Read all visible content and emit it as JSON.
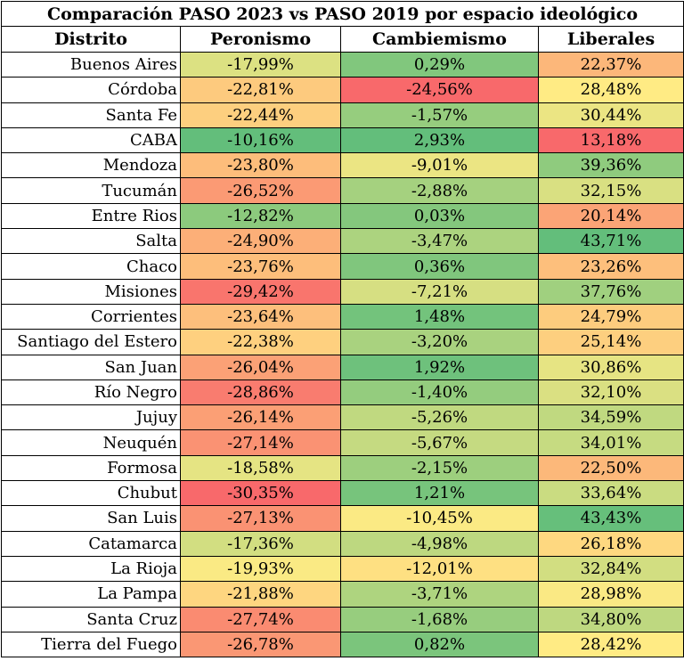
{
  "chart_data": {
    "type": "table",
    "title": "Comparación PASO 2023 vs PASO 2019 por espacio ideológico",
    "columns": [
      "Distrito",
      "Peronismo",
      "Cambiemismo",
      "Liberales"
    ],
    "rows": [
      {
        "distrito": "Buenos Aires",
        "peronismo": "-17,99%",
        "cambiemismo": "0,29%",
        "liberales": "22,37%"
      },
      {
        "distrito": "Córdoba",
        "peronismo": "-22,81%",
        "cambiemismo": "-24,56%",
        "liberales": "28,48%"
      },
      {
        "distrito": "Santa Fe",
        "peronismo": "-22,44%",
        "cambiemismo": "-1,57%",
        "liberales": "30,44%"
      },
      {
        "distrito": "CABA",
        "peronismo": "-10,16%",
        "cambiemismo": "2,93%",
        "liberales": "13,18%"
      },
      {
        "distrito": "Mendoza",
        "peronismo": "-23,80%",
        "cambiemismo": "-9,01%",
        "liberales": "39,36%"
      },
      {
        "distrito": "Tucumán",
        "peronismo": "-26,52%",
        "cambiemismo": "-2,88%",
        "liberales": "32,15%"
      },
      {
        "distrito": "Entre Rios",
        "peronismo": "-12,82%",
        "cambiemismo": "0,03%",
        "liberales": "20,14%"
      },
      {
        "distrito": "Salta",
        "peronismo": "-24,90%",
        "cambiemismo": "-3,47%",
        "liberales": "43,71%"
      },
      {
        "distrito": "Chaco",
        "peronismo": "-23,76%",
        "cambiemismo": "0,36%",
        "liberales": "23,26%"
      },
      {
        "distrito": "Misiones",
        "peronismo": "-29,42%",
        "cambiemismo": "-7,21%",
        "liberales": "37,76%"
      },
      {
        "distrito": "Corrientes",
        "peronismo": "-23,64%",
        "cambiemismo": "1,48%",
        "liberales": "24,79%"
      },
      {
        "distrito": "Santiago del Estero",
        "peronismo": "-22,38%",
        "cambiemismo": "-3,20%",
        "liberales": "25,14%"
      },
      {
        "distrito": "San Juan",
        "peronismo": "-26,04%",
        "cambiemismo": "1,92%",
        "liberales": "30,86%"
      },
      {
        "distrito": "Río Negro",
        "peronismo": "-28,86%",
        "cambiemismo": "-1,40%",
        "liberales": "32,10%"
      },
      {
        "distrito": "Jujuy",
        "peronismo": "-26,14%",
        "cambiemismo": "-5,26%",
        "liberales": "34,59%"
      },
      {
        "distrito": "Neuquén",
        "peronismo": "-27,14%",
        "cambiemismo": "-5,67%",
        "liberales": "34,01%"
      },
      {
        "distrito": "Formosa",
        "peronismo": "-18,58%",
        "cambiemismo": "-2,15%",
        "liberales": "22,50%"
      },
      {
        "distrito": "Chubut",
        "peronismo": "-30,35%",
        "cambiemismo": "1,21%",
        "liberales": "33,64%"
      },
      {
        "distrito": "San Luis",
        "peronismo": "-27,13%",
        "cambiemismo": "-10,45%",
        "liberales": "43,43%"
      },
      {
        "distrito": "Catamarca",
        "peronismo": "-17,36%",
        "cambiemismo": "-4,98%",
        "liberales": "26,18%"
      },
      {
        "distrito": "La Rioja",
        "peronismo": "-19,93%",
        "cambiemismo": "-12,01%",
        "liberales": "32,84%"
      },
      {
        "distrito": "La Pampa",
        "peronismo": "-21,88%",
        "cambiemismo": "-3,71%",
        "liberales": "28,98%"
      },
      {
        "distrito": "Santa Cruz",
        "peronismo": "-27,74%",
        "cambiemismo": "-1,68%",
        "liberales": "34,80%"
      },
      {
        "distrito": "Tierra del Fuego",
        "peronismo": "-26,78%",
        "cambiemismo": "0,82%",
        "liberales": "28,42%"
      }
    ],
    "color_scale": {
      "low": "#f8696b",
      "mid": "#ffeb84",
      "high": "#63be7b"
    }
  }
}
